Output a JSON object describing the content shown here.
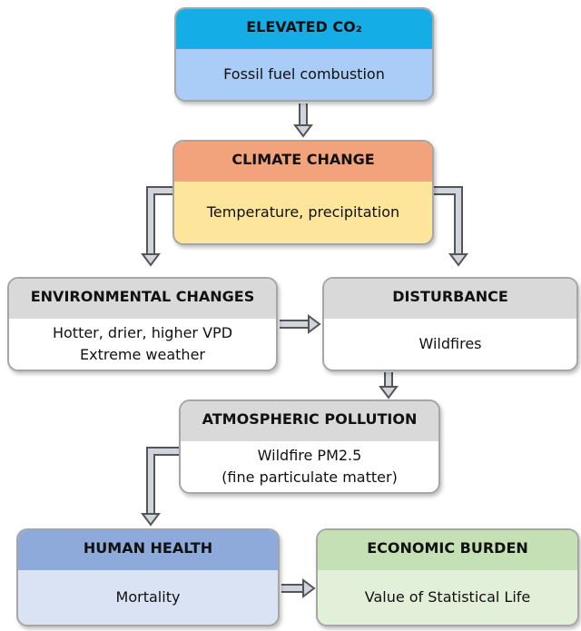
{
  "nodes": [
    {
      "title": "ELEVATED CO₂",
      "lines": [
        "Fossil fuel combustion"
      ]
    },
    {
      "title": "CLIMATE CHANGE",
      "lines": [
        "Temperature, precipitation"
      ]
    },
    {
      "title": "ENVIRONMENTAL CHANGES",
      "lines": [
        "Hotter, drier, higher VPD",
        "Extreme weather"
      ]
    },
    {
      "title": "DISTURBANCE",
      "lines": [
        "Wildfires"
      ]
    },
    {
      "title": "ATMOSPHERIC POLLUTION",
      "lines": [
        "Wildfire PM2.5",
        "(fine particulate matter)"
      ]
    },
    {
      "title": "HUMAN HEALTH",
      "lines": [
        "Mortality"
      ]
    },
    {
      "title": "ECONOMIC BURDEN",
      "lines": [
        "Value of Statistical Life"
      ]
    }
  ]
}
